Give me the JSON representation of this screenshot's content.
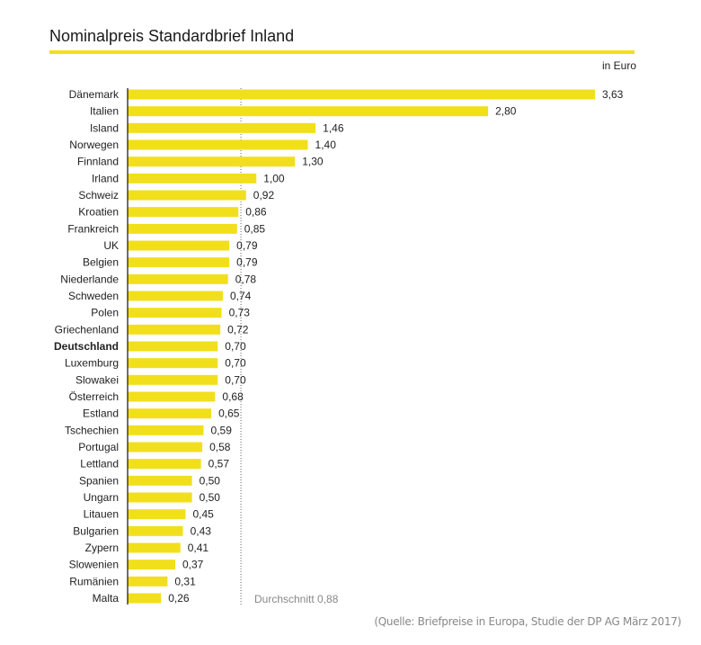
{
  "chart_data": {
    "type": "bar",
    "orientation": "horizontal",
    "title": "Nominalpreis Standardbrief Inland",
    "unit_label": "in Euro",
    "categories": [
      "Dänemark",
      "Italien",
      "Island",
      "Norwegen",
      "Finnland",
      "Irland",
      "Schweiz",
      "Kroatien",
      "Frankreich",
      "UK",
      "Belgien",
      "Niederlande",
      "Schweden",
      "Polen",
      "Griechenland",
      "Deutschland",
      "Luxemburg",
      "Slowakei",
      "Österreich",
      "Estland",
      "Tschechien",
      "Portugal",
      "Lettland",
      "Spanien",
      "Ungarn",
      "Litauen",
      "Bulgarien",
      "Zypern",
      "Slowenien",
      "Rumänien",
      "Malta"
    ],
    "values": [
      3.63,
      2.8,
      1.46,
      1.4,
      1.3,
      1.0,
      0.92,
      0.86,
      0.85,
      0.79,
      0.79,
      0.78,
      0.74,
      0.73,
      0.72,
      0.7,
      0.7,
      0.7,
      0.68,
      0.65,
      0.59,
      0.58,
      0.57,
      0.5,
      0.5,
      0.45,
      0.43,
      0.41,
      0.37,
      0.31,
      0.26
    ],
    "value_labels": [
      "3,63",
      "2,80",
      "1,46",
      "1,40",
      "1,30",
      "1,00",
      "0,92",
      "0,86",
      "0,85",
      "0,79",
      "0,79",
      "0,78",
      "0,74",
      "0,73",
      "0,72",
      "0,70",
      "0,70",
      "0,70",
      "0,68",
      "0,65",
      "0,59",
      "0,58",
      "0,57",
      "0,50",
      "0,50",
      "0,45",
      "0,43",
      "0,41",
      "0,37",
      "0,31",
      "0,26"
    ],
    "highlight_category": "Deutschland",
    "average": {
      "value": 0.88,
      "label": "Durchschnitt 0,88"
    },
    "xlim": [
      0,
      3.63
    ],
    "grid": false,
    "bar_color": "#f2df1c",
    "source": "(Quelle: Briefpreise in Europa, Studie der DP AG März 2017)"
  }
}
